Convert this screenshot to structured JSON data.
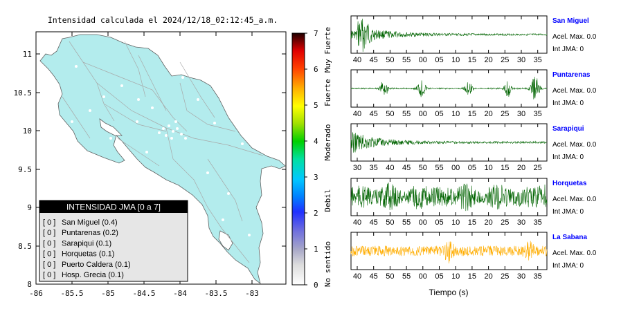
{
  "map": {
    "title": "Intensidad calculada el 2024/12/18_02:12:45_a.m.",
    "x_ticks": [
      "-86",
      "-85.5",
      "-85",
      "-84.5",
      "-84",
      "-83.5",
      "-83"
    ],
    "y_ticks": [
      "11",
      "10.5",
      "10",
      "9.5",
      "9",
      "8.5",
      "8"
    ],
    "land_color": "#b3eced",
    "legend": {
      "title": "INTENSIDAD JMA [0 a 7]",
      "items": [
        {
          "value": "[ 0 ]",
          "label": "San Miguel (0.4)"
        },
        {
          "value": "[ 0 ]",
          "label": "Puntarenas (0.2)"
        },
        {
          "value": "[ 0 ]",
          "label": "Sarapiqui (0.1)"
        },
        {
          "value": "[ 0 ]",
          "label": "Horquetas (0.1)"
        },
        {
          "value": "[ 0 ]",
          "label": "Puerto Caldera (0.1)"
        },
        {
          "value": "[ 0 ]",
          "label": "Hosp. Grecia (0.1)"
        }
      ]
    }
  },
  "colorbar": {
    "ticks": [
      "0",
      "1",
      "2",
      "3",
      "4",
      "5",
      "6",
      "7"
    ],
    "labels": [
      "No sentido",
      "Debil",
      "Moderado",
      "Fuerte",
      "Muy Fuerte"
    ]
  },
  "stations": [
    {
      "name": "San Miguel",
      "acel": "Acel. Max. 0.0",
      "int": "Int JMA: 0",
      "ticks": [
        "40",
        "45",
        "50",
        "55",
        "00",
        "05",
        "10",
        "15",
        "20",
        "25",
        "30",
        "35"
      ],
      "color": "#006400"
    },
    {
      "name": "Puntarenas",
      "acel": "Acel. Max. 0.0",
      "int": "Int JMA: 0",
      "ticks": [
        "40",
        "45",
        "50",
        "55",
        "00",
        "05",
        "10",
        "15",
        "20",
        "25",
        "30",
        "35"
      ],
      "color": "#006400"
    },
    {
      "name": "Sarapiqui",
      "acel": "Acel. Max. 0.0",
      "int": "Int JMA: 0",
      "ticks": [
        "30",
        "35",
        "40",
        "45",
        "50",
        "55",
        "00",
        "05",
        "10",
        "15",
        "20",
        "25"
      ],
      "color": "#006400"
    },
    {
      "name": "Horquetas",
      "acel": "Acel. Max. 0.0",
      "int": "Int JMA: 0",
      "ticks": [
        "40",
        "45",
        "50",
        "55",
        "00",
        "05",
        "10",
        "15",
        "20",
        "25",
        "30",
        "35"
      ],
      "color": "#006400"
    },
    {
      "name": "La Sabana",
      "acel": "Acel. Max. 0.0",
      "int": "Int JMA: 0",
      "ticks": [
        "40",
        "45",
        "50",
        "55",
        "00",
        "05",
        "10",
        "15",
        "20",
        "25",
        "30",
        "35"
      ],
      "color": "#ffad00"
    }
  ],
  "waveform_xlabel": "Tiempo (s)",
  "station_label_color": "#0000ff"
}
